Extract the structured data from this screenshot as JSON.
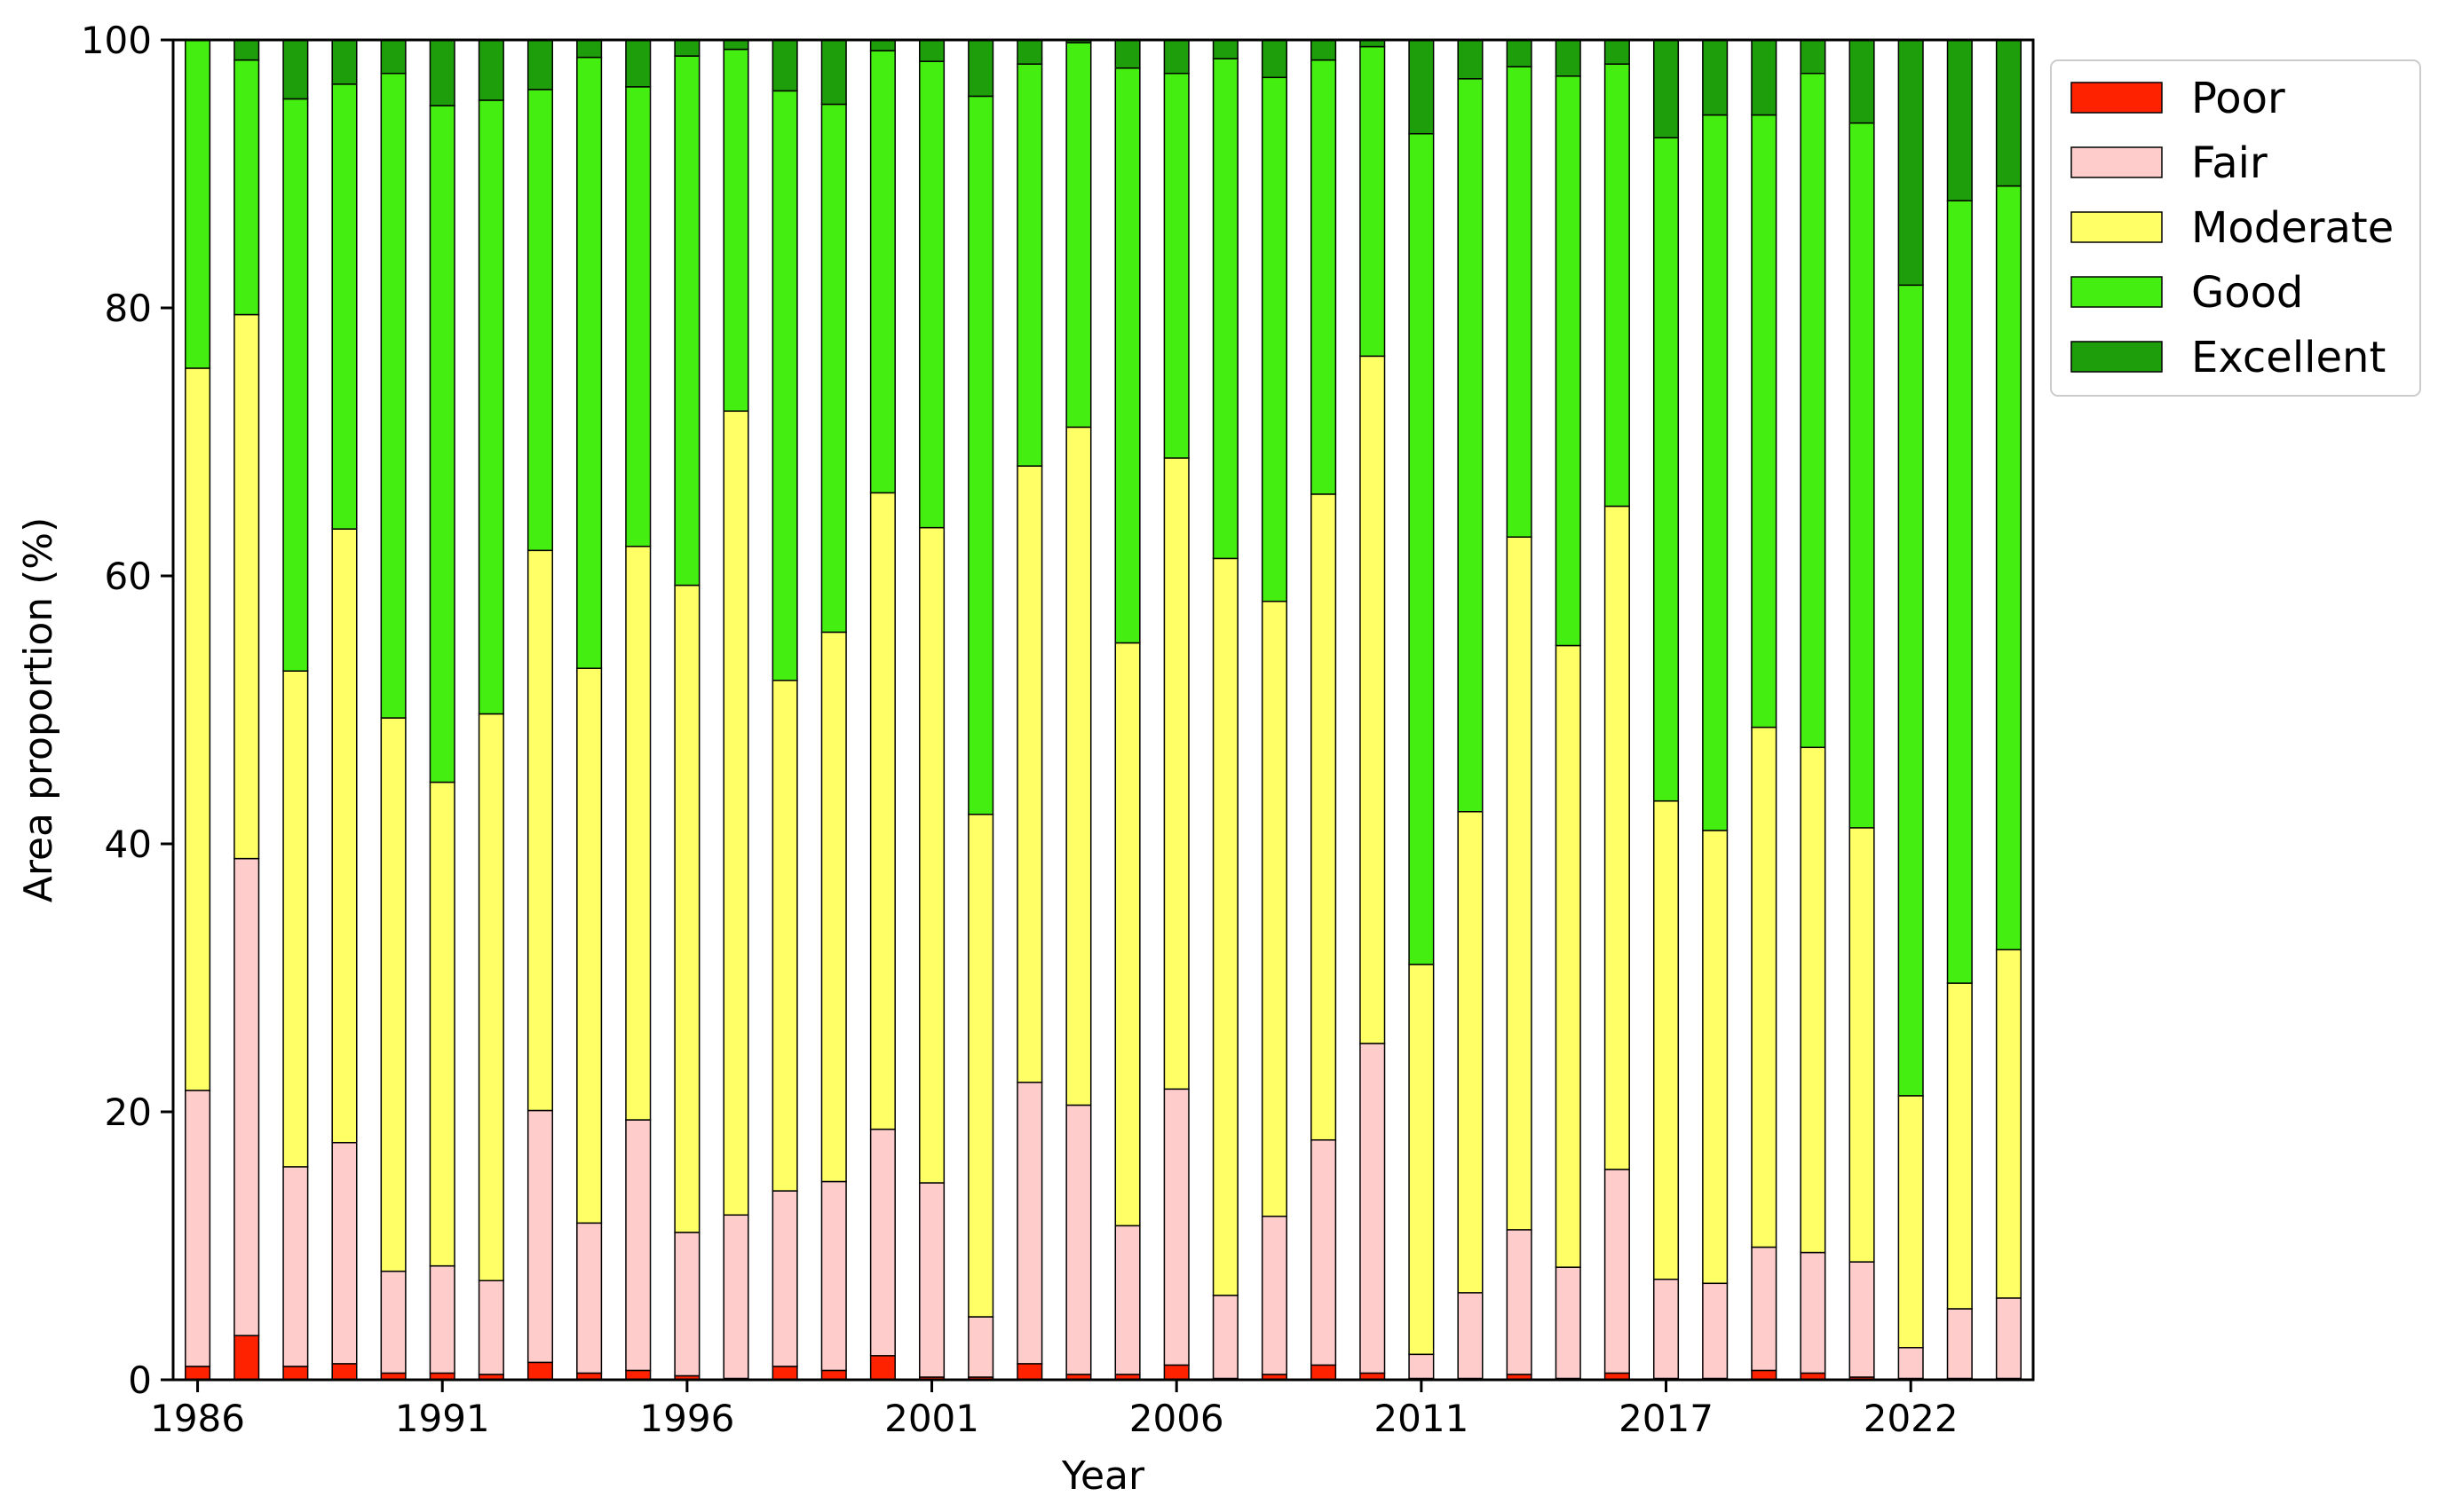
{
  "chart_data": {
    "type": "bar",
    "stacked": true,
    "title": "",
    "xlabel": "Year",
    "ylabel": "Area proportion (%)",
    "ylim": [
      0,
      100
    ],
    "yticks": [
      0,
      20,
      40,
      60,
      80,
      100
    ],
    "grid": false,
    "legend_position": "top-right, outside plot",
    "categories": [
      1986,
      1987,
      1988,
      1989,
      1990,
      1991,
      1992,
      1993,
      1994,
      1995,
      1996,
      1997,
      1998,
      1999,
      2000,
      2001,
      2002,
      2003,
      2004,
      2005,
      2006,
      2007,
      2008,
      2009,
      2010,
      2011,
      2013,
      2014,
      2015,
      2016,
      2017,
      2018,
      2019,
      2020,
      2021,
      2022,
      2023,
      2024
    ],
    "x_tick_labels": [
      {
        "label": "1986",
        "index": 0
      },
      {
        "label": "1991",
        "index": 5
      },
      {
        "label": "1996",
        "index": 10
      },
      {
        "label": "2001",
        "index": 15
      },
      {
        "label": "2006",
        "index": 20
      },
      {
        "label": "2011",
        "index": 25
      },
      {
        "label": "2017",
        "index": 30
      },
      {
        "label": "2022",
        "index": 35
      }
    ],
    "series": [
      {
        "name": "Poor",
        "color": "#ff2200",
        "values": [
          1.0,
          3.3,
          1.0,
          1.2,
          0.5,
          0.5,
          0.4,
          1.3,
          0.5,
          0.7,
          0.3,
          0.1,
          1.0,
          0.7,
          1.8,
          0.2,
          0.2,
          1.2,
          0.4,
          0.4,
          1.1,
          0.1,
          0.4,
          1.1,
          0.5,
          0.1,
          0.1,
          0.4,
          0.1,
          0.5,
          0.1,
          0.1,
          0.7,
          0.5,
          0.2,
          0.1,
          0.1,
          0.1
        ]
      },
      {
        "name": "Fair",
        "color": "#ffcccc",
        "values": [
          20.6,
          35.6,
          14.9,
          16.5,
          7.6,
          8.0,
          7.0,
          18.8,
          11.2,
          18.7,
          10.7,
          12.2,
          13.1,
          14.1,
          16.9,
          14.5,
          4.5,
          21.0,
          20.1,
          11.1,
          20.6,
          6.2,
          11.8,
          16.8,
          24.6,
          1.8,
          6.4,
          10.8,
          8.3,
          15.2,
          7.4,
          7.1,
          9.2,
          9.0,
          8.6,
          2.3,
          5.2,
          6.0
        ]
      },
      {
        "name": "Moderate",
        "color": "#ffff66",
        "values": [
          53.9,
          40.6,
          37.0,
          45.8,
          41.3,
          36.1,
          42.3,
          41.8,
          41.4,
          42.8,
          48.3,
          60.0,
          38.1,
          41.0,
          47.5,
          48.9,
          37.5,
          46.0,
          50.6,
          43.5,
          47.1,
          55.0,
          45.9,
          48.2,
          51.3,
          29.1,
          35.9,
          51.7,
          46.4,
          49.5,
          35.7,
          33.8,
          38.8,
          37.7,
          32.4,
          18.8,
          24.3,
          26.0
        ]
      },
      {
        "name": "Good",
        "color": "#44ee11",
        "values": [
          24.5,
          19.0,
          42.7,
          33.2,
          48.1,
          50.5,
          45.8,
          34.4,
          45.6,
          34.3,
          39.5,
          27.0,
          44.0,
          39.4,
          33.0,
          34.8,
          53.6,
          30.0,
          28.7,
          42.9,
          28.7,
          37.3,
          39.1,
          32.4,
          23.1,
          62.0,
          54.7,
          35.1,
          42.5,
          33.0,
          49.5,
          53.4,
          45.7,
          50.3,
          52.6,
          60.5,
          58.4,
          57.0
        ]
      },
      {
        "name": "Excellent",
        "color": "#1e9e0a",
        "values": [
          0.0,
          1.5,
          4.4,
          3.3,
          2.5,
          4.9,
          4.5,
          3.7,
          1.3,
          3.5,
          1.2,
          0.7,
          3.8,
          4.8,
          0.8,
          1.6,
          4.2,
          1.8,
          0.2,
          2.1,
          2.5,
          1.4,
          2.8,
          1.5,
          0.5,
          7.0,
          2.9,
          2.0,
          2.7,
          1.8,
          7.3,
          5.6,
          5.6,
          2.5,
          6.2,
          18.3,
          12.0,
          10.9
        ]
      }
    ]
  }
}
